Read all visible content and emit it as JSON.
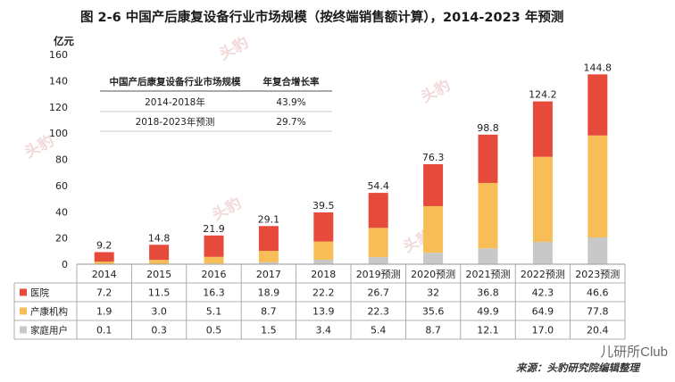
{
  "figure_title": "图 2-6  中国产后康复设备行业市场规模（按终端销售额计算），2014-2023 年预测",
  "source": "来源：头豹研究院编辑整理",
  "brand_tag": "儿研所Club",
  "watermarks": [
    "头豹",
    "头豹",
    "头豹",
    "头豹",
    "头豹"
  ],
  "colors": {
    "hospital": "#e64a3b",
    "postpartum": "#f7bd57",
    "home": "#c8c8c8"
  },
  "cagr_table": {
    "header": [
      "中国产后康复设备行业市场规模",
      "年复合增长率"
    ],
    "rows": [
      [
        "2014-2018年",
        "43.9%"
      ],
      [
        "2018-2023年预测",
        "29.7%"
      ]
    ]
  },
  "chart_data": {
    "type": "bar",
    "stacked": true,
    "title": "中国产后康复设备行业市场规模（按终端销售额计算），2014-2023 年预测",
    "ylabel": "亿元",
    "ylim": [
      0,
      160
    ],
    "yticks": [
      0,
      20,
      40,
      60,
      80,
      100,
      120,
      140,
      160
    ],
    "categories": [
      "2014",
      "2015",
      "2016",
      "2017",
      "2018",
      "2019预测",
      "2020预测",
      "2021预测",
      "2022预测",
      "2023预测"
    ],
    "totals": [
      9.2,
      14.8,
      21.9,
      29.1,
      39.5,
      54.4,
      76.3,
      98.8,
      124.2,
      144.8
    ],
    "series": [
      {
        "name": "家庭用户",
        "color_key": "home",
        "values": [
          0.1,
          0.3,
          0.5,
          1.5,
          3.4,
          5.4,
          8.7,
          12.1,
          17.0,
          20.4
        ]
      },
      {
        "name": "产康机构",
        "color_key": "postpartum",
        "values": [
          1.9,
          3.0,
          5.1,
          8.7,
          13.9,
          22.3,
          35.6,
          49.9,
          64.9,
          77.8
        ]
      },
      {
        "name": "医院",
        "color_key": "hospital",
        "values": [
          7.2,
          11.5,
          16.3,
          18.9,
          22.2,
          26.7,
          32,
          36.8,
          42.3,
          46.6
        ]
      }
    ],
    "table_rows": [
      {
        "name": "医院",
        "color_key": "hospital",
        "values": [
          "7.2",
          "11.5",
          "16.3",
          "18.9",
          "22.2",
          "26.7",
          "32",
          "36.8",
          "42.3",
          "46.6"
        ]
      },
      {
        "name": "产康机构",
        "color_key": "postpartum",
        "values": [
          "1.9",
          "3.0",
          "5.1",
          "8.7",
          "13.9",
          "22.3",
          "35.6",
          "49.9",
          "64.9",
          "77.8"
        ]
      },
      {
        "name": "家庭用户",
        "color_key": "home",
        "values": [
          "0.1",
          "0.3",
          "0.5",
          "1.5",
          "3.4",
          "5.4",
          "8.7",
          "12.1",
          "17.0",
          "20.4"
        ]
      }
    ]
  }
}
